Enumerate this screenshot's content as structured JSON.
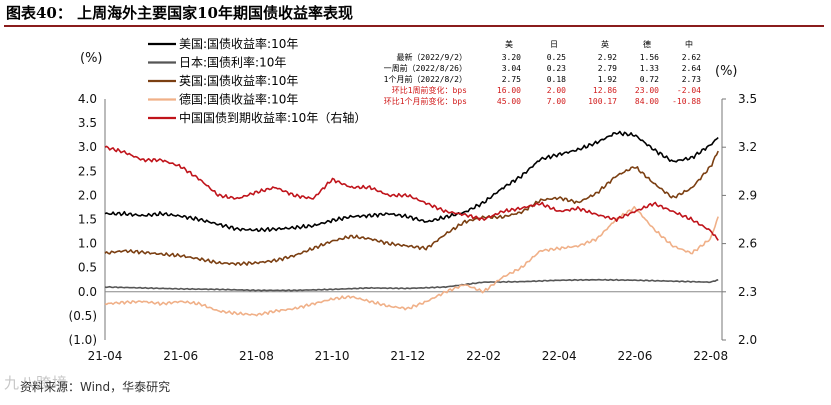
{
  "title": "图表40：  上周海外主要国家10年期国债收益率表现",
  "source": "资料来源：Wind，华泰研究",
  "watermark": "九八跨境",
  "chart_data": {
    "type": "line",
    "left_unit": "(%)",
    "right_unit": "(%)",
    "left_ylim": [
      -1.0,
      4.0
    ],
    "right_ylim": [
      2.0,
      3.5
    ],
    "left_ticks": [
      "4.0",
      "3.5",
      "3.0",
      "2.5",
      "2.0",
      "1.5",
      "1.0",
      "0.5",
      "0.0",
      "(0.5)",
      "(1.0)"
    ],
    "right_ticks": [
      "3.5",
      "3.2",
      "2.9",
      "2.6",
      "2.3",
      "2.0"
    ],
    "x_tick_labels": [
      "21-04",
      "21-06",
      "21-08",
      "21-10",
      "21-12",
      "22-02",
      "22-04",
      "22-06",
      "22-08"
    ],
    "x_range_months": [
      0,
      16.3
    ],
    "grid": false,
    "legend_position": "top-left",
    "series": [
      {
        "name": "美国:国债收益率:10年",
        "color": "#000000",
        "axis": "left",
        "x": [
          0,
          0.5,
          1,
          1.5,
          2,
          2.5,
          3,
          3.5,
          4,
          4.5,
          5,
          5.5,
          6,
          6.5,
          7,
          7.5,
          8,
          8.5,
          9,
          9.5,
          10,
          10.5,
          11,
          11.5,
          12,
          12.5,
          13,
          13.5,
          14,
          14.5,
          15,
          15.5,
          16,
          16.2
        ],
        "values": [
          1.62,
          1.62,
          1.58,
          1.62,
          1.57,
          1.5,
          1.4,
          1.3,
          1.28,
          1.3,
          1.33,
          1.37,
          1.48,
          1.56,
          1.58,
          1.62,
          1.56,
          1.45,
          1.55,
          1.65,
          1.85,
          2.15,
          2.4,
          2.75,
          2.85,
          2.95,
          3.1,
          3.3,
          3.25,
          2.95,
          2.7,
          2.78,
          3.05,
          3.2
        ]
      },
      {
        "name": "日本:国债利率:10年",
        "color": "#555555",
        "axis": "left",
        "x": [
          0,
          1,
          2,
          3,
          4,
          5,
          6,
          7,
          8,
          9,
          9.5,
          10,
          11,
          12,
          13,
          14,
          15,
          16,
          16.2
        ],
        "values": [
          0.1,
          0.08,
          0.06,
          0.05,
          0.03,
          0.03,
          0.05,
          0.08,
          0.07,
          0.1,
          0.15,
          0.2,
          0.21,
          0.24,
          0.25,
          0.24,
          0.22,
          0.2,
          0.25
        ]
      },
      {
        "name": "英国:国债收益率:10年",
        "color": "#7b3f12",
        "axis": "left",
        "x": [
          0,
          0.5,
          1,
          1.5,
          2,
          2.5,
          3,
          3.5,
          4,
          4.5,
          5,
          5.5,
          6,
          6.5,
          7,
          7.5,
          8,
          8.5,
          9,
          9.5,
          10,
          10.5,
          11,
          11.5,
          12,
          12.5,
          13,
          13.5,
          14,
          14.5,
          15,
          15.5,
          16,
          16.2
        ],
        "values": [
          0.8,
          0.85,
          0.82,
          0.78,
          0.75,
          0.68,
          0.6,
          0.58,
          0.6,
          0.65,
          0.75,
          0.9,
          1.05,
          1.15,
          1.1,
          1.0,
          0.95,
          0.9,
          1.2,
          1.45,
          1.55,
          1.55,
          1.65,
          1.9,
          1.95,
          1.85,
          2.05,
          2.4,
          2.6,
          2.25,
          1.95,
          2.15,
          2.6,
          2.92
        ]
      },
      {
        "name": "德国:国债收益率:10年",
        "color": "#f0b088",
        "axis": "left",
        "x": [
          0,
          0.5,
          1,
          1.5,
          2,
          2.5,
          3,
          3.5,
          4,
          4.5,
          5,
          5.5,
          6,
          6.5,
          7,
          7.5,
          8,
          8.5,
          9,
          9.5,
          10,
          10.5,
          11,
          11.5,
          12,
          12.5,
          13,
          13.5,
          14,
          14.5,
          15,
          15.5,
          16,
          16.2
        ],
        "values": [
          -0.25,
          -0.22,
          -0.2,
          -0.25,
          -0.2,
          -0.25,
          -0.4,
          -0.45,
          -0.48,
          -0.4,
          -0.35,
          -0.25,
          -0.15,
          -0.1,
          -0.2,
          -0.3,
          -0.35,
          -0.2,
          0.0,
          0.15,
          0.0,
          0.3,
          0.5,
          0.85,
          0.9,
          0.95,
          1.1,
          1.5,
          1.75,
          1.3,
          0.95,
          0.8,
          1.1,
          1.56
        ]
      },
      {
        "name": "中国国债到期收益率:10年（右轴）",
        "color": "#c0141b",
        "axis": "right",
        "x": [
          0,
          0.5,
          1,
          1.5,
          2,
          2.5,
          3,
          3.5,
          4,
          4.5,
          5,
          5.5,
          6,
          6.5,
          7,
          7.5,
          8,
          8.5,
          9,
          9.5,
          10,
          10.5,
          11,
          11.5,
          12,
          12.5,
          13,
          13.5,
          14,
          14.5,
          15,
          15.5,
          16,
          16.2
        ],
        "values": [
          3.2,
          3.17,
          3.12,
          3.12,
          3.08,
          3.0,
          2.9,
          2.88,
          2.92,
          2.95,
          2.9,
          2.88,
          3.0,
          2.95,
          2.95,
          2.9,
          2.9,
          2.85,
          2.8,
          2.78,
          2.75,
          2.8,
          2.82,
          2.85,
          2.8,
          2.82,
          2.78,
          2.75,
          2.8,
          2.85,
          2.8,
          2.75,
          2.68,
          2.62
        ]
      }
    ],
    "table": {
      "headers": [
        "",
        "美",
        "日",
        "英",
        "德",
        "中"
      ],
      "rows": [
        {
          "label": "最新（2022/9/2）",
          "values": [
            "3.20",
            "0.25",
            "2.92",
            "1.56",
            "2.62"
          ],
          "highlight": false
        },
        {
          "label": "一周前（2022/8/26）",
          "values": [
            "3.04",
            "0.23",
            "2.79",
            "1.33",
            "2.64"
          ],
          "highlight": false
        },
        {
          "label": "1个月前（2022/8/2）",
          "values": [
            "2.75",
            "0.18",
            "1.92",
            "0.72",
            "2.73"
          ],
          "highlight": false
        },
        {
          "label": "环比1周前变化：bps",
          "values": [
            "16.00",
            "2.00",
            "12.86",
            "23.00",
            "-2.04"
          ],
          "highlight": true
        },
        {
          "label": "环比1个月前变化：bps",
          "values": [
            "45.00",
            "7.00",
            "100.17",
            "84.00",
            "-10.88"
          ],
          "highlight": true
        }
      ]
    }
  }
}
